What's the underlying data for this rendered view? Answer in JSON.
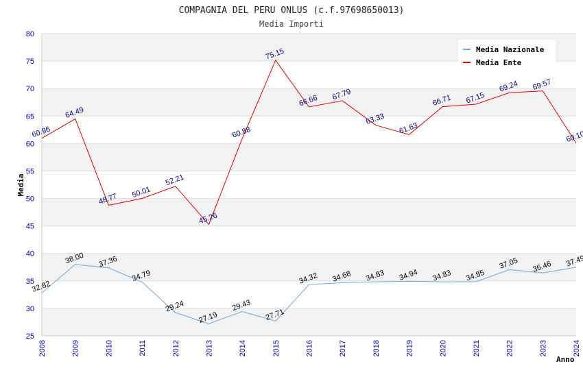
{
  "chart_data": {
    "type": "line",
    "title": "COMPAGNIA DEL PERU ONLUS (c.f.97698650013)",
    "subtitle": "Media Importi",
    "xlabel": "Anno",
    "ylabel": "Media",
    "ylim": [
      25,
      80
    ],
    "yticks": [
      25,
      30,
      35,
      40,
      45,
      50,
      55,
      60,
      65,
      70,
      75,
      80
    ],
    "x": [
      "2008",
      "2009",
      "2010",
      "2011",
      "2012",
      "2013",
      "2014",
      "2015",
      "2016",
      "2017",
      "2018",
      "2019",
      "2020",
      "2021",
      "2022",
      "2023",
      "2024"
    ],
    "grid": true,
    "legend_position": "top-right",
    "series": [
      {
        "name": "Media Nazionale",
        "color": "#6fa8dc",
        "label_color": "#000000",
        "values": [
          32.82,
          38.0,
          37.36,
          34.79,
          29.24,
          27.19,
          29.43,
          27.71,
          34.32,
          34.68,
          34.83,
          34.94,
          34.83,
          34.85,
          37.05,
          36.46,
          37.49
        ]
      },
      {
        "name": "Media Ente",
        "color": "#e00000",
        "label_color": "#000080",
        "values": [
          60.96,
          64.49,
          48.77,
          50.01,
          52.21,
          45.26,
          60.88,
          75.15,
          66.66,
          67.79,
          63.33,
          61.63,
          66.71,
          67.15,
          69.24,
          69.57,
          60.1
        ]
      }
    ]
  }
}
